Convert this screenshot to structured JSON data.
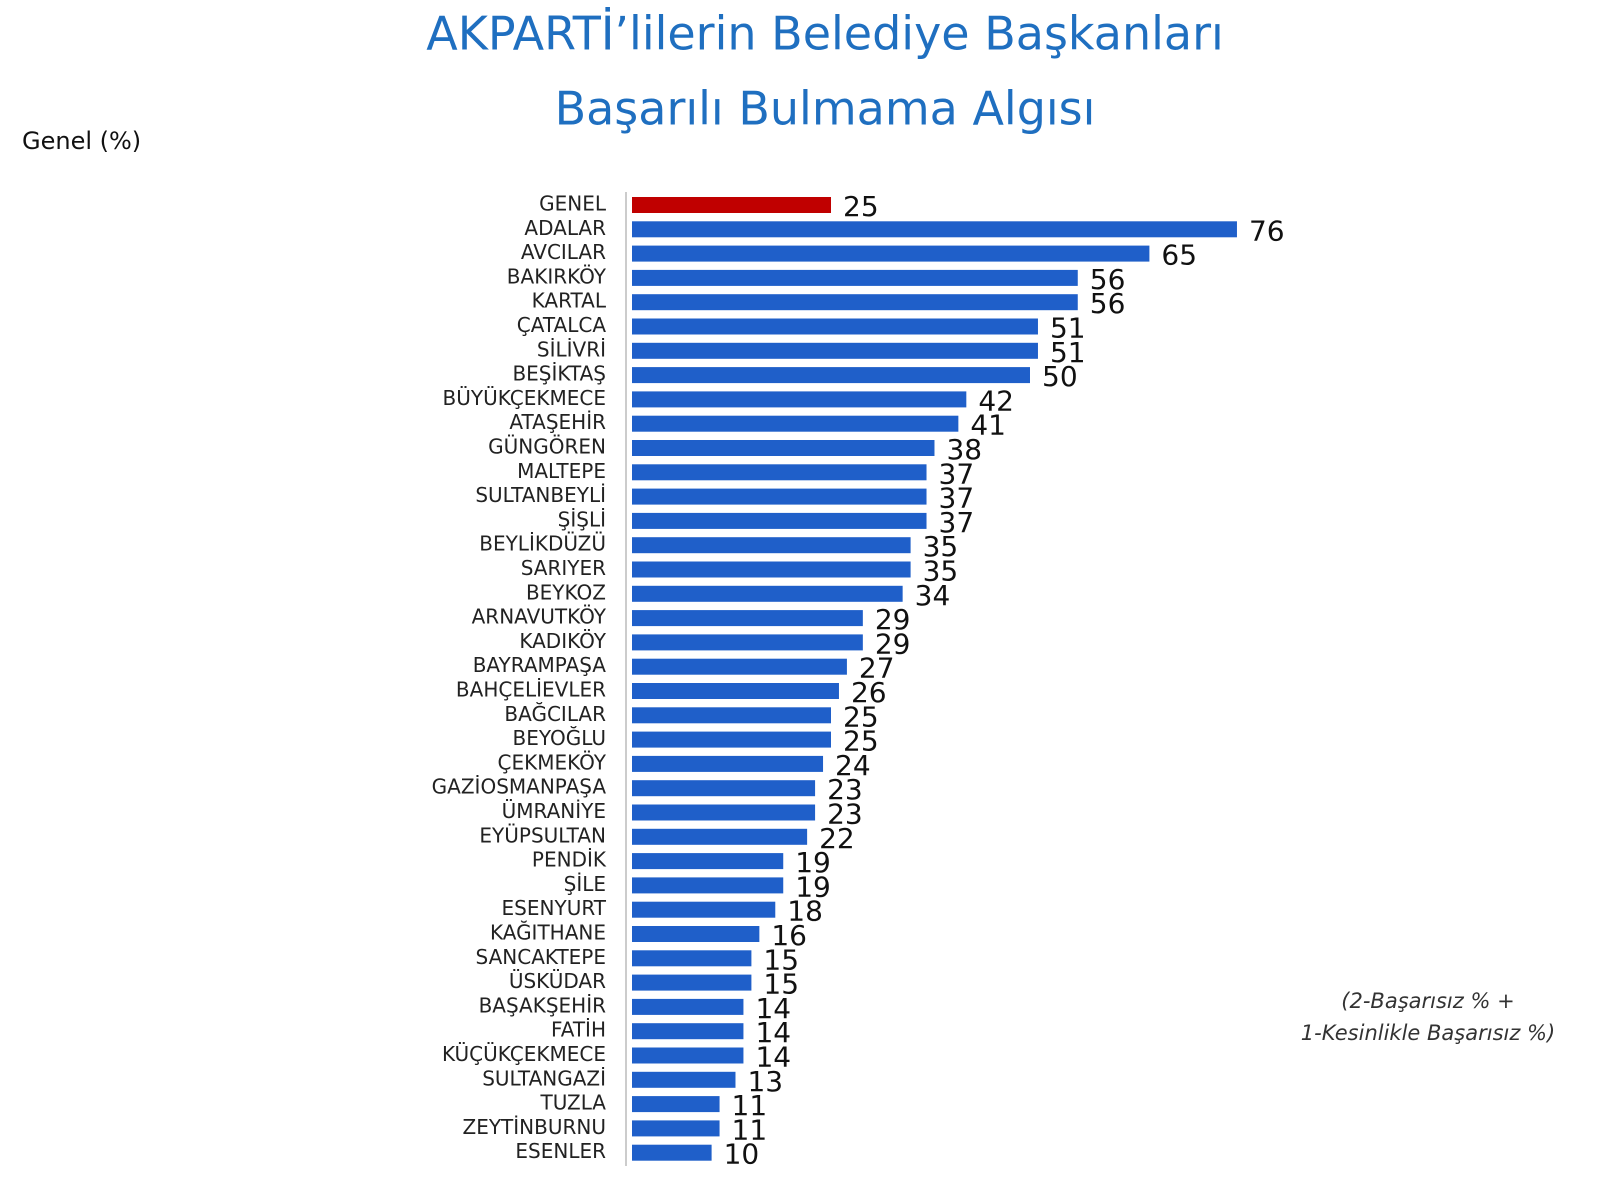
{
  "chart_data": {
    "type": "hbar",
    "title_lines": [
      "AKPARTİ’lilerin Belediye Başkanları",
      "Başarılı Bulmama Algısı"
    ],
    "subtitle": "Genel (%)",
    "note_lines": [
      "(2-Başarısız % +",
      "1-Kesinlikle Başarısız %)"
    ],
    "categories": [
      "GENEL",
      "ADALAR",
      "AVCILAR",
      "BAKIRKÖY",
      "KARTAL",
      "ÇATALCA",
      "SİLİVRİ",
      "BEŞİKTAŞ",
      "BÜYÜKÇEKMECE",
      "ATAŞEHİR",
      "GÜNGÖREN",
      "MALTEPE",
      "SULTANBEYLİ",
      "ŞİŞLİ",
      "BEYLİKDÜZÜ",
      "SARIYER",
      "BEYKOZ",
      "ARNAVUTKÖY",
      "KADIKÖY",
      "BAYRAMPAŞA",
      "BAHÇELİEVLER",
      "BAĞCILAR",
      "BEYOĞLU",
      "ÇEKMEKÖY",
      "GAZİOSMANPAŞA",
      "ÜMRANİYE",
      "EYÜPSULTAN",
      "PENDİK",
      "ŞİLE",
      "ESENYURT",
      "KAĞITHANE",
      "SANCAKTEPE",
      "ÜSKÜDAR",
      "BAŞAKŞEHİR",
      "FATİH",
      "KÜÇÜKÇEKMECE",
      "SULTANGAZİ",
      "TUZLA",
      "ZEYTİNBURNU",
      "ESENLER"
    ],
    "values": [
      25,
      76,
      65,
      56,
      56,
      51,
      51,
      50,
      42,
      41,
      38,
      37,
      37,
      37,
      35,
      35,
      34,
      29,
      29,
      27,
      26,
      25,
      25,
      24,
      23,
      23,
      22,
      19,
      19,
      18,
      16,
      15,
      15,
      14,
      14,
      14,
      13,
      11,
      11,
      10
    ],
    "colors": [
      "#c00000",
      "#1f5fc9",
      "#1f5fc9",
      "#1f5fc9",
      "#1f5fc9",
      "#1f5fc9",
      "#1f5fc9",
      "#1f5fc9",
      "#1f5fc9",
      "#1f5fc9",
      "#1f5fc9",
      "#1f5fc9",
      "#1f5fc9",
      "#1f5fc9",
      "#1f5fc9",
      "#1f5fc9",
      "#1f5fc9",
      "#1f5fc9",
      "#1f5fc9",
      "#1f5fc9",
      "#1f5fc9",
      "#1f5fc9",
      "#1f5fc9",
      "#1f5fc9",
      "#1f5fc9",
      "#1f5fc9",
      "#1f5fc9",
      "#1f5fc9",
      "#1f5fc9",
      "#1f5fc9",
      "#1f5fc9",
      "#1f5fc9",
      "#1f5fc9",
      "#1f5fc9",
      "#1f5fc9",
      "#1f5fc9",
      "#1f5fc9",
      "#1f5fc9",
      "#1f5fc9",
      "#1f5fc9"
    ]
  }
}
